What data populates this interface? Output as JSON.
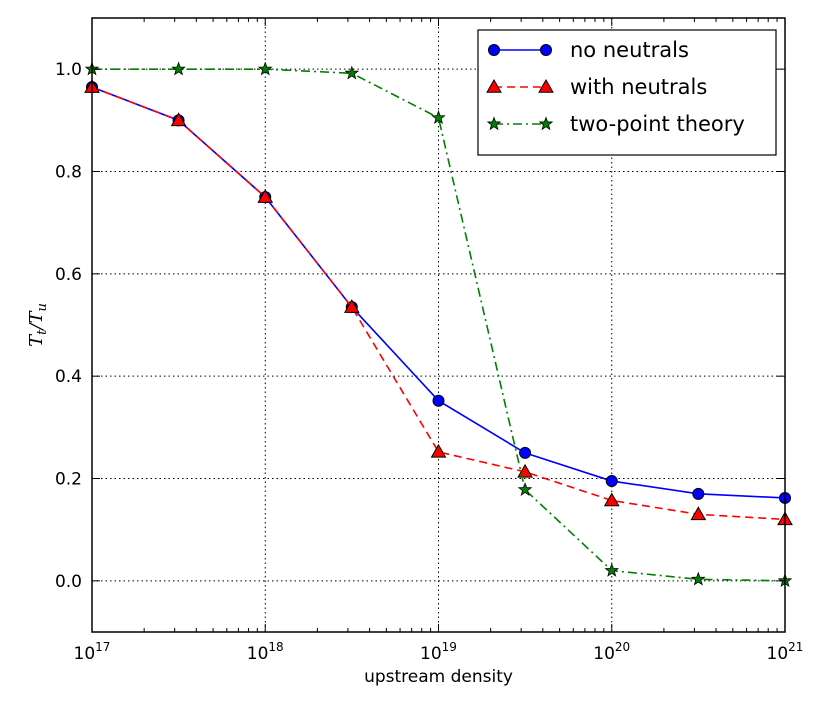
{
  "chart_data": {
    "type": "line",
    "xscale": "log",
    "xlabel": "upstream density",
    "ylabel": {
      "base1": "T",
      "sub1": "t",
      "slash": "/",
      "base2": "T",
      "sub2": "u"
    },
    "xlim": [
      1e+17,
      1e+21
    ],
    "ylim": [
      -0.1,
      1.1
    ],
    "grid": true,
    "legend_position": "top-right",
    "x_ticks": [
      {
        "base": "10",
        "exp": "17"
      },
      {
        "base": "10",
        "exp": "18"
      },
      {
        "base": "10",
        "exp": "19"
      },
      {
        "base": "10",
        "exp": "20"
      },
      {
        "base": "10",
        "exp": "21"
      }
    ],
    "y_ticks": [
      "0.0",
      "0.2",
      "0.4",
      "0.6",
      "0.8",
      "1.0"
    ],
    "x": [
      1e+17,
      3.16e+17,
      1e+18,
      3.16e+18,
      1e+19,
      3.16e+19,
      1e+20,
      3.16e+20,
      1e+21
    ],
    "series": [
      {
        "name": "no neutrals",
        "color": "#0000ff",
        "marker": "circle",
        "linestyle": "solid",
        "values": [
          0.965,
          0.9,
          0.75,
          0.535,
          0.352,
          0.25,
          0.195,
          0.17,
          0.162
        ]
      },
      {
        "name": "with neutrals",
        "color": "#ff0000",
        "marker": "triangle",
        "linestyle": "dashed",
        "values": [
          0.965,
          0.9,
          0.75,
          0.535,
          0.252,
          0.213,
          0.157,
          0.13,
          0.12
        ]
      },
      {
        "name": "two-point theory",
        "color": "#008000",
        "marker": "star",
        "linestyle": "dashdot",
        "values": [
          1.0,
          1.0,
          1.0,
          0.992,
          0.905,
          0.178,
          0.02,
          0.003,
          0.0
        ]
      }
    ]
  }
}
